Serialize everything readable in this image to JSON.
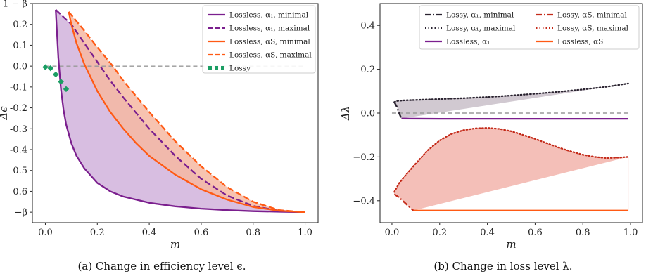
{
  "captions": [
    "(a) Change in efficiency level ϵ.",
    "(b) Change in loss level λ."
  ],
  "colors": {
    "purple": "#7b1f8e",
    "orange": "#ff5a14",
    "green": "#1b9e63",
    "dark": "#2a2330",
    "red": "#c42b1a",
    "purple_fill": "#d4b7de",
    "orange_fill": "#f6b9a2",
    "grey_fill": "#cfc6cf",
    "red_fill": "#f3bcb4",
    "zero_line": "#999999"
  },
  "chart_data": [
    {
      "type": "line",
      "xlabel": "m",
      "ylabel": "Δϵ",
      "xlim": [
        -0.05,
        1.05
      ],
      "ylim": [
        -0.75,
        0.3
      ],
      "x_ticks": [
        0.0,
        0.2,
        0.4,
        0.6,
        0.8,
        1.0
      ],
      "x_tick_labels": [
        "0.0",
        "0.2",
        "0.4",
        "0.6",
        "0.8",
        "1.0"
      ],
      "y_ticks": [
        0.3,
        0.2,
        0.1,
        0.0,
        -0.1,
        -0.2,
        -0.3,
        -0.4,
        -0.5,
        -0.6,
        -0.7
      ],
      "y_tick_labels": [
        "1 − β",
        "0.2",
        "0.1",
        "0.0",
        "-0.1",
        "-0.2",
        "-0.3",
        "-0.4",
        "-0.5",
        "-0.6",
        "−β"
      ],
      "reference_line_y": 0.0,
      "legend_position": "top-right",
      "series": [
        {
          "name": "Lossless, α₁, minimal",
          "style": "solid",
          "color": "purple",
          "x": [
            0.04,
            0.05,
            0.06,
            0.07,
            0.08,
            0.1,
            0.12,
            0.15,
            0.2,
            0.25,
            0.3,
            0.4,
            0.5,
            0.6,
            0.7,
            0.8,
            0.9,
            1.0
          ],
          "y": [
            0.27,
            0.04,
            -0.11,
            -0.21,
            -0.28,
            -0.37,
            -0.43,
            -0.49,
            -0.56,
            -0.6,
            -0.625,
            -0.655,
            -0.672,
            -0.683,
            -0.69,
            -0.695,
            -0.698,
            -0.7
          ]
        },
        {
          "name": "Lossless, α₁, maximal",
          "style": "dashed",
          "color": "purple",
          "x": [
            0.04,
            0.1,
            0.15,
            0.2,
            0.25,
            0.3,
            0.4,
            0.5,
            0.6,
            0.7,
            0.8,
            0.9,
            1.0
          ],
          "y": [
            0.27,
            0.2,
            0.11,
            0.02,
            -0.07,
            -0.15,
            -0.3,
            -0.43,
            -0.54,
            -0.62,
            -0.67,
            -0.693,
            -0.7
          ]
        },
        {
          "name": "Lossless, αS, minimal",
          "style": "solid",
          "color": "orange",
          "x": [
            0.09,
            0.1,
            0.12,
            0.15,
            0.2,
            0.25,
            0.3,
            0.35,
            0.4,
            0.5,
            0.6,
            0.7,
            0.8,
            0.9,
            1.0
          ],
          "y": [
            0.26,
            0.2,
            0.11,
            0.01,
            -0.12,
            -0.22,
            -0.3,
            -0.37,
            -0.43,
            -0.52,
            -0.59,
            -0.64,
            -0.675,
            -0.693,
            -0.7
          ]
        },
        {
          "name": "Lossless, αS, maximal",
          "style": "dashed",
          "color": "orange",
          "x": [
            0.09,
            0.15,
            0.2,
            0.26,
            0.3,
            0.4,
            0.5,
            0.6,
            0.7,
            0.8,
            0.9,
            1.0
          ],
          "y": [
            0.26,
            0.17,
            0.09,
            0.0,
            -0.07,
            -0.22,
            -0.36,
            -0.48,
            -0.58,
            -0.65,
            -0.69,
            -0.7
          ]
        },
        {
          "name": "Lossy",
          "style": "dots",
          "color": "green",
          "x": [
            0.0,
            0.02,
            0.04,
            0.06,
            0.08
          ],
          "y": [
            -0.005,
            -0.01,
            -0.04,
            -0.075,
            -0.11
          ]
        }
      ]
    },
    {
      "type": "line",
      "xlabel": "m",
      "ylabel": "Δλ",
      "xlim": [
        -0.05,
        1.05
      ],
      "ylim": [
        -0.5,
        0.5
      ],
      "x_ticks": [
        0.0,
        0.2,
        0.4,
        0.6,
        0.8,
        1.0
      ],
      "x_tick_labels": [
        "0.0",
        "0.2",
        "0.4",
        "0.6",
        "0.8",
        "1.0"
      ],
      "y_ticks": [
        0.4,
        0.2,
        0.0,
        -0.2,
        -0.4
      ],
      "y_tick_labels": [
        "0.4",
        "0.2",
        "0.0",
        "−0.2",
        "−0.4"
      ],
      "reference_line_y": 0.0,
      "legend_position": "top",
      "series": [
        {
          "name": "Lossy, α₁, minimal",
          "style": "dashdot",
          "color": "dark",
          "x": [
            0.01,
            0.02,
            0.03,
            0.04
          ],
          "y": [
            0.05,
            0.03,
            0.0,
            -0.025
          ]
        },
        {
          "name": "Lossy, αS, minimal",
          "style": "dashdot",
          "color": "red",
          "x": [
            0.01,
            0.03,
            0.05,
            0.07,
            0.09
          ],
          "y": [
            -0.37,
            -0.385,
            -0.405,
            -0.425,
            -0.445
          ]
        },
        {
          "name": "Lossy, α₁, maximal",
          "style": "dotted",
          "color": "dark",
          "x": [
            0.01,
            0.02,
            0.05,
            0.1,
            0.2,
            0.3,
            0.4,
            0.5,
            0.6,
            0.7,
            0.8,
            0.9,
            0.99
          ],
          "y": [
            0.05,
            0.055,
            0.058,
            0.06,
            0.064,
            0.068,
            0.073,
            0.08,
            0.088,
            0.097,
            0.108,
            0.12,
            0.135
          ]
        },
        {
          "name": "Lossy, αS, maximal",
          "style": "dotted",
          "color": "red",
          "x": [
            0.01,
            0.03,
            0.06,
            0.1,
            0.15,
            0.2,
            0.25,
            0.3,
            0.35,
            0.4,
            0.45,
            0.5,
            0.55,
            0.6,
            0.65,
            0.7,
            0.75,
            0.8,
            0.85,
            0.9,
            0.95,
            0.99
          ],
          "y": [
            -0.36,
            -0.32,
            -0.28,
            -0.23,
            -0.17,
            -0.125,
            -0.095,
            -0.078,
            -0.07,
            -0.068,
            -0.072,
            -0.083,
            -0.1,
            -0.118,
            -0.138,
            -0.158,
            -0.175,
            -0.19,
            -0.2,
            -0.205,
            -0.203,
            -0.2
          ]
        },
        {
          "name": "Lossless, α₁",
          "style": "solid",
          "color": "purple",
          "x": [
            0.04,
            0.2,
            0.4,
            0.6,
            0.8,
            0.99
          ],
          "y": [
            -0.025,
            -0.026,
            -0.026,
            -0.026,
            -0.026,
            -0.026
          ]
        },
        {
          "name": "Lossless, αS",
          "style": "solid",
          "color": "orange",
          "x": [
            0.09,
            0.2,
            0.4,
            0.6,
            0.8,
            0.99
          ],
          "y": [
            -0.445,
            -0.445,
            -0.445,
            -0.445,
            -0.445,
            -0.445
          ]
        }
      ]
    }
  ]
}
